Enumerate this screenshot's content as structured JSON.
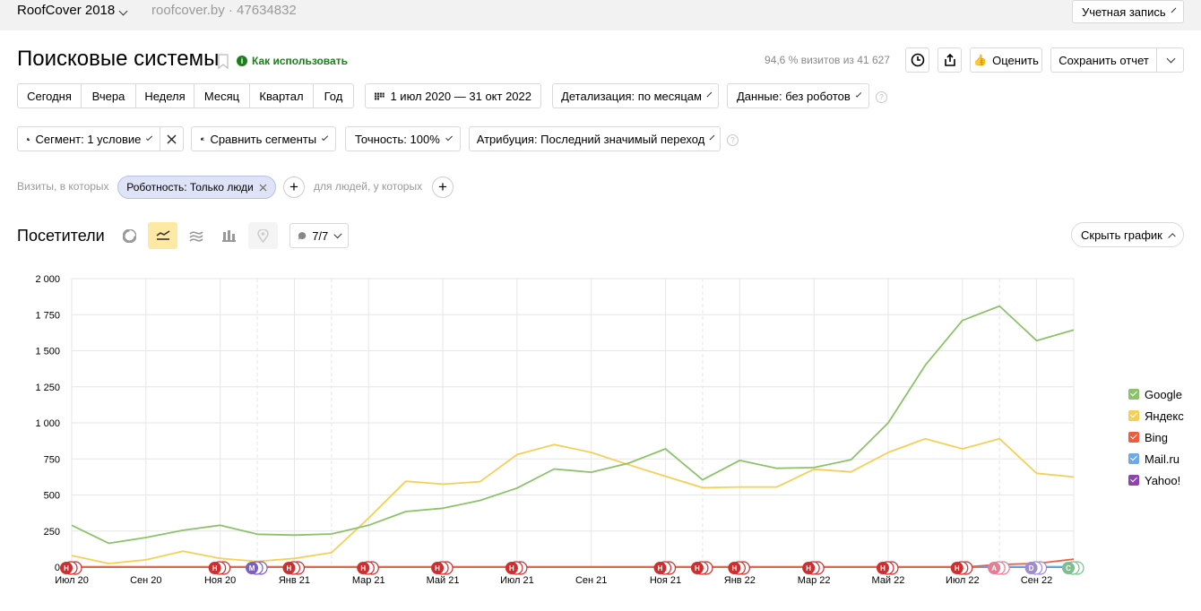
{
  "header": {
    "app_name": "RoofCover 2018",
    "counter": "roofcover.by · 47634832",
    "account_button": "Учетная запись"
  },
  "page": {
    "title": "Поисковые системы",
    "how_to_use": "Как использовать",
    "stats": "94,6 % визитов из 41 627",
    "rate_button": "Оценить",
    "save_report_button": "Сохранить отчет"
  },
  "period": {
    "presets": [
      "Сегодня",
      "Вчера",
      "Неделя",
      "Месяц",
      "Квартал",
      "Год"
    ],
    "date_range": "1 июл 2020 — 31 окт 2022",
    "detail": "Детализация: по месяцам",
    "data": "Данные: без роботов"
  },
  "segments": {
    "segment": "Сегмент: 1 условие",
    "compare": "Сравнить сегменты",
    "accuracy": "Точность: 100%",
    "attribution": "Атрибуция: Последний значимый переход"
  },
  "filters": {
    "visits_label": "Визиты, в которых",
    "chip": "Роботность: Только люди",
    "people_label": "для людей, у которых"
  },
  "chart_section": {
    "title": "Посетители",
    "annotations_count": "7/7",
    "hide_button": "Скрыть график"
  },
  "chart_data": {
    "type": "line",
    "ylim": [
      0,
      2000
    ],
    "yticks": [
      "0",
      "250",
      "500",
      "750",
      "1 000",
      "1 250",
      "1 500",
      "1 750",
      "2 000"
    ],
    "x_months": [
      "Jul 20",
      "Aug 20",
      "Sep 20",
      "Oct 20",
      "Nov 20",
      "Dec 20",
      "Jan 21",
      "Feb 21",
      "Mar 21",
      "Apr 21",
      "May 21",
      "Jun 21",
      "Jul 21",
      "Aug 21",
      "Sep 21",
      "Oct 21",
      "Nov 21",
      "Dec 21",
      "Jan 22",
      "Feb 22",
      "Mar 22",
      "Apr 22",
      "May 22",
      "Jun 22",
      "Jul 22",
      "Aug 22",
      "Sep 22",
      "Oct 22"
    ],
    "xtick_labels": [
      {
        "i": 0,
        "label": "Июл 20"
      },
      {
        "i": 2,
        "label": "Сен 20"
      },
      {
        "i": 4,
        "label": "Ноя 20"
      },
      {
        "i": 6,
        "label": "Янв 21"
      },
      {
        "i": 8,
        "label": "Мар 21"
      },
      {
        "i": 10,
        "label": "Май 21"
      },
      {
        "i": 12,
        "label": "Июл 21"
      },
      {
        "i": 14,
        "label": "Сен 21"
      },
      {
        "i": 16,
        "label": "Ноя 21"
      },
      {
        "i": 18,
        "label": "Янв 22"
      },
      {
        "i": 20,
        "label": "Мар 22"
      },
      {
        "i": 22,
        "label": "Май 22"
      },
      {
        "i": 24,
        "label": "Июл 22"
      },
      {
        "i": 26,
        "label": "Сен 22"
      }
    ],
    "dashed_month_indices": [
      5,
      7,
      17,
      25
    ],
    "series": [
      {
        "name": "Google",
        "color": "#8cc36a",
        "values": [
          290,
          165,
          205,
          255,
          290,
          228,
          222,
          230,
          290,
          385,
          408,
          462,
          548,
          680,
          658,
          720,
          820,
          605,
          740,
          685,
          690,
          745,
          1000,
          1400,
          1710,
          1810,
          1570,
          1645
        ]
      },
      {
        "name": "Яндекс",
        "color": "#f5cf58",
        "values": [
          80,
          25,
          50,
          110,
          60,
          40,
          60,
          100,
          340,
          595,
          575,
          592,
          780,
          850,
          795,
          710,
          630,
          550,
          555,
          555,
          678,
          660,
          795,
          890,
          820,
          890,
          650,
          625
        ]
      },
      {
        "name": "Bing",
        "color": "#ee5d3e",
        "values": [
          0,
          0,
          0,
          0,
          0,
          0,
          0,
          0,
          0,
          0,
          0,
          0,
          0,
          0,
          0,
          0,
          0,
          0,
          0,
          0,
          0,
          0,
          0,
          0,
          0,
          18,
          25,
          55
        ]
      },
      {
        "name": "Mail.ru",
        "color": "#6fa8e6",
        "values": [
          3,
          3,
          3,
          3,
          3,
          3,
          3,
          3,
          3,
          3,
          3,
          3,
          3,
          3,
          3,
          3,
          3,
          3,
          3,
          3,
          3,
          3,
          3,
          3,
          3,
          3,
          3,
          3
        ]
      },
      {
        "name": "Yahoo!",
        "color": "#8e44ad",
        "values": [
          0,
          0,
          0,
          0,
          0,
          0,
          0,
          0,
          0,
          0,
          0,
          0,
          0,
          0,
          0,
          0,
          0,
          0,
          0,
          0,
          0,
          0,
          0,
          0,
          0,
          0,
          0,
          0
        ]
      }
    ],
    "markers": [
      {
        "i": 0,
        "label": "Н",
        "color": "#cf2e2e"
      },
      {
        "i": 4,
        "label": "Н",
        "color": "#cf2e2e"
      },
      {
        "i": 5,
        "label": "М",
        "color": "#7b5fc4"
      },
      {
        "i": 6,
        "label": "Н",
        "color": "#cf2e2e"
      },
      {
        "i": 8,
        "label": "Н",
        "color": "#cf2e2e"
      },
      {
        "i": 10,
        "label": "Н",
        "color": "#cf2e2e"
      },
      {
        "i": 12,
        "label": "Н",
        "color": "#cf2e2e"
      },
      {
        "i": 16,
        "label": "Н",
        "color": "#cf2e2e"
      },
      {
        "i": 17,
        "label": "Н",
        "color": "#cf2e2e"
      },
      {
        "i": 18,
        "label": "Н",
        "color": "#cf2e2e"
      },
      {
        "i": 20,
        "label": "Н",
        "color": "#cf2e2e"
      },
      {
        "i": 22,
        "label": "Н",
        "color": "#cf2e2e"
      },
      {
        "i": 24,
        "label": "Н",
        "color": "#cf2e2e"
      },
      {
        "i": 25,
        "label": "А",
        "color": "#e57f93"
      },
      {
        "i": 26,
        "label": "D",
        "color": "#9f8ad4"
      },
      {
        "i": 27,
        "label": "С",
        "color": "#7cbf8f"
      }
    ]
  }
}
